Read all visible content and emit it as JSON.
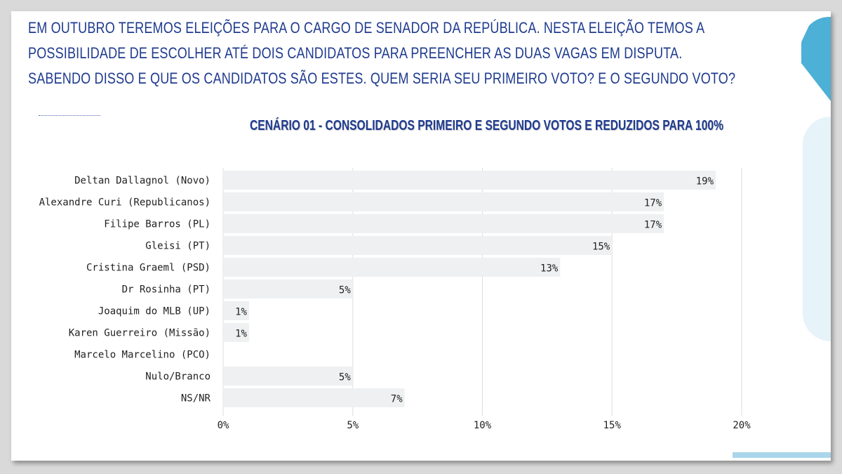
{
  "question": {
    "lines": [
      "EM OUTUBRO TEREMOS ELEIÇÕES PARA O CARGO DE SENADOR DA REPÚBLICA. NESTA ELEIÇÃO TEMOS A",
      "POSSIBILIDADE DE ESCOLHER ATÉ DOIS CANDIDATOS PARA PREENCHER AS DUAS VAGAS EM DISPUTA.",
      "SABENDO DISSO E QUE OS CANDIDATOS SÃO ESTES. QUEM SERIA SEU PRIMEIRO VOTO? E O SEGUNDO VOTO?"
    ]
  },
  "colors": {
    "title": "#1f3b8f",
    "bar": "#eef0f1",
    "grid": "#dddddd",
    "accent": "#4db0d6"
  },
  "chart_data": {
    "type": "bar",
    "orientation": "horizontal",
    "title": "CENÁRIO 01 - CONSOLIDADOS PRIMEIRO E SEGUNDO VOTOS E REDUZIDOS PARA 100%",
    "categories": [
      "Deltan Dallagnol (Novo)",
      "Alexandre Curi (Republicanos)",
      "Filipe Barros (PL)",
      "Gleisi (PT)",
      "Cristina Graeml (PSD)",
      "Dr Rosinha (PT)",
      "Joaquim do MLB (UP)",
      "Karen Guerreiro (Missão)",
      "Marcelo Marcelino (PCO)",
      "Nulo/Branco",
      "NS/NR"
    ],
    "values": [
      19,
      17,
      17,
      15,
      13,
      5,
      1,
      1,
      0,
      5,
      7
    ],
    "value_labels": [
      "19%",
      "17%",
      "17%",
      "15%",
      "13%",
      "5%",
      "1%",
      "1%",
      "",
      "5%",
      "7%"
    ],
    "xlim": [
      0,
      20
    ],
    "xticks": [
      0,
      5,
      10,
      15,
      20
    ],
    "xtick_labels": [
      "0%",
      "5%",
      "10%",
      "15%",
      "20%"
    ],
    "grid": true,
    "legend": "none"
  }
}
